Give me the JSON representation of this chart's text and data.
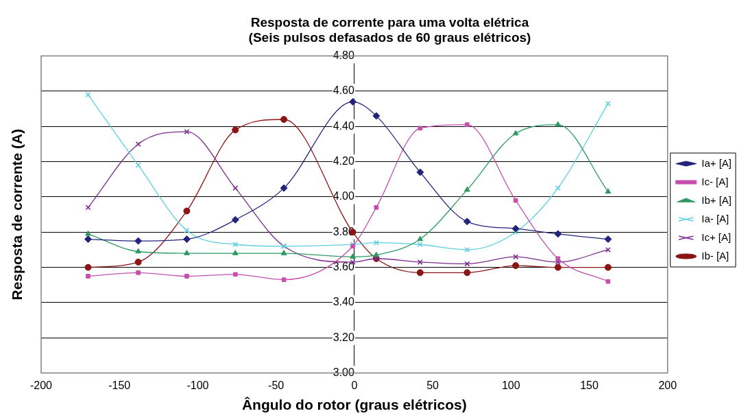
{
  "chart_data": {
    "type": "line",
    "title": "Resposta de corrente para uma volta elétrica\n(Seis pulsos defasados de 60 graus elétricos)",
    "xlabel": "Ângulo do rotor (graus elétricos)",
    "ylabel": "Resposta de corrente (A)",
    "x": [
      -170,
      -138,
      -107,
      -76,
      -45,
      -1,
      14,
      42,
      72,
      103,
      130,
      162
    ],
    "series": [
      {
        "name": "Ia+ [A]",
        "color": "#23237e",
        "marker": "diamond",
        "values": [
          3.76,
          3.75,
          3.76,
          3.87,
          4.05,
          4.54,
          4.46,
          4.14,
          3.86,
          3.82,
          3.79,
          3.76
        ]
      },
      {
        "name": "Ic- [A]",
        "color": "#c64fae",
        "marker": "square",
        "values": [
          3.55,
          3.57,
          3.55,
          3.56,
          3.53,
          3.72,
          3.94,
          4.39,
          4.41,
          3.98,
          3.65,
          3.52
        ]
      },
      {
        "name": "Ib+ [A]",
        "color": "#2e9a63",
        "marker": "triangle",
        "values": [
          3.79,
          3.69,
          3.68,
          3.68,
          3.68,
          3.66,
          3.67,
          3.76,
          4.04,
          4.36,
          4.41,
          4.03
        ]
      },
      {
        "name": "Ia- [A]",
        "color": "#5ccfe0",
        "marker": "cross",
        "values": [
          4.58,
          4.18,
          3.81,
          3.73,
          3.72,
          3.73,
          3.74,
          3.73,
          3.7,
          3.8,
          4.05,
          4.53
        ]
      },
      {
        "name": "Ic+ [A]",
        "color": "#7d2b8e",
        "marker": "cross",
        "values": [
          3.94,
          4.3,
          4.37,
          4.05,
          3.72,
          3.63,
          3.65,
          3.63,
          3.62,
          3.66,
          3.63,
          3.7
        ]
      },
      {
        "name": "Ib- [A]",
        "color": "#8b1414",
        "marker": "circle",
        "values": [
          3.6,
          3.63,
          3.92,
          4.38,
          4.44,
          3.8,
          3.65,
          3.57,
          3.57,
          3.61,
          3.6,
          3.6
        ]
      }
    ],
    "xlim": [
      -200,
      200
    ],
    "xticks": [
      -200,
      -150,
      -100,
      -50,
      0,
      50,
      100,
      150,
      200
    ],
    "ylim": [
      3.0,
      4.8
    ],
    "yticks": [
      {
        "value": 3.0,
        "label": "3.00"
      },
      {
        "value": 3.2,
        "label": "3.20"
      },
      {
        "value": 3.4,
        "label": "3.40"
      },
      {
        "value": 3.6,
        "label": "3.60"
      },
      {
        "value": 3.8,
        "label": "3.80"
      },
      {
        "value": 4.0,
        "label": "4.00"
      },
      {
        "value": 4.2,
        "label": "4.20"
      },
      {
        "value": 4.4,
        "label": "4.40"
      },
      {
        "value": 4.6,
        "label": "4.60"
      },
      {
        "value": 4.8,
        "label": "4.80"
      }
    ],
    "grid": "y",
    "legend": "right",
    "line_style": "solid"
  }
}
